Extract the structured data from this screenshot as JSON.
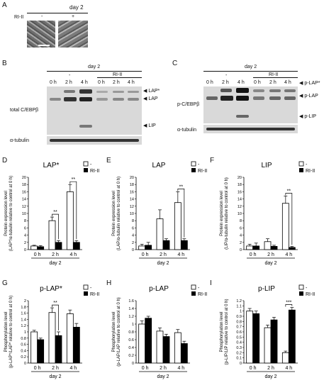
{
  "figure": {
    "panels": {
      "A": {
        "letter": "A",
        "group_label": "day 2",
        "row_label": "RI-II",
        "conditions": [
          "-",
          "+"
        ]
      },
      "B": {
        "letter": "B",
        "group_label": "day 2",
        "treatment_label": "RI-II",
        "minus_label": "-",
        "times": [
          "0 h",
          "2 h",
          "4 h",
          "0 h",
          "2 h",
          "4 h"
        ],
        "left_label": "total C/EBPβ",
        "loading_label": "α-tubulin",
        "band_labels": [
          "LAP*",
          "LAP",
          "LIP"
        ]
      },
      "C": {
        "letter": "C",
        "group_label": "day 2",
        "treatment_label": "RI-II",
        "minus_label": "-",
        "times": [
          "0 h",
          "2 h",
          "4 h",
          "0 h",
          "2 h",
          "4 h"
        ],
        "left_label": "p-C/EBPβ",
        "loading_label": "α-tubulin",
        "band_labels": [
          "p-LAP*",
          "p-LAP",
          "p-LIP"
        ]
      }
    },
    "legend": {
      "minus": "-",
      "treatment": "RI-II"
    }
  },
  "chart_data": [
    {
      "panel": "D",
      "type": "bar",
      "title": "LAP*",
      "ylabel": "Protein expression level\n(LAP*/α-tubulin relative to control at 0 h)",
      "xlabel": "day 2",
      "categories": [
        "0 h",
        "2 h",
        "4 h"
      ],
      "ylim": [
        0,
        20
      ],
      "yticks": [
        "0",
        "2",
        "4",
        "6",
        "8",
        "10",
        "12",
        "14",
        "16",
        "18",
        "20"
      ],
      "series": [
        {
          "name": "-",
          "values": [
            1,
            8,
            16
          ],
          "errors": [
            0.2,
            1.0,
            2.0
          ],
          "color": "#ffffff"
        },
        {
          "name": "RI-II",
          "values": [
            0.8,
            2,
            2
          ],
          "errors": [
            0.3,
            0.5,
            0.5
          ],
          "color": "#000000"
        }
      ],
      "significance": [
        {
          "category": "2 h",
          "label": "**"
        },
        {
          "category": "4 h",
          "label": "**"
        }
      ]
    },
    {
      "panel": "E",
      "type": "bar",
      "title": "LAP",
      "ylabel": "Protein expression level\n(LAP/α-tubulin relative to control at 0 h)",
      "xlabel": "day 2",
      "categories": [
        "0 h",
        "2 h",
        "4 h"
      ],
      "ylim": [
        0,
        20
      ],
      "yticks": [
        "0",
        "2",
        "4",
        "6",
        "8",
        "10",
        "12",
        "14",
        "16",
        "18",
        "20"
      ],
      "series": [
        {
          "name": "-",
          "values": [
            1,
            8.5,
            13
          ],
          "errors": [
            0.5,
            2.5,
            3.0
          ],
          "color": "#ffffff"
        },
        {
          "name": "RI-II",
          "values": [
            1.2,
            2.5,
            2.5
          ],
          "errors": [
            0.8,
            0.5,
            0.5
          ],
          "color": "#000000"
        }
      ],
      "significance": [
        {
          "category": "4 h",
          "label": "**"
        }
      ]
    },
    {
      "panel": "F",
      "type": "bar",
      "title": "LIP",
      "ylabel": "Protein expression level\n(LIP/α-tubulin relative to control at 0 h)",
      "xlabel": "day 2",
      "categories": [
        "0 h",
        "2 h",
        "4 h"
      ],
      "ylim": [
        0,
        20
      ],
      "yticks": [
        "0",
        "2",
        "4",
        "6",
        "8",
        "10",
        "12",
        "14",
        "16",
        "18",
        "20"
      ],
      "series": [
        {
          "name": "-",
          "values": [
            1,
            2.2,
            12.8
          ],
          "errors": [
            0.5,
            0.8,
            2.0
          ],
          "color": "#ffffff"
        },
        {
          "name": "RI-II",
          "values": [
            1,
            0.9,
            0.6
          ],
          "errors": [
            0.8,
            0.3,
            0.3
          ],
          "color": "#000000"
        }
      ],
      "significance": [
        {
          "category": "4 h",
          "label": "**"
        }
      ]
    },
    {
      "panel": "G",
      "type": "bar",
      "title": "p-LAP*",
      "ylabel": "Phosphorylation level\n(p-LAP*/LAP* relative to control at 0 h)",
      "xlabel": "day 2",
      "categories": [
        "0 h",
        "2 h",
        "4 h"
      ],
      "ylim": [
        0,
        2
      ],
      "yticks": [
        "0",
        "0.2",
        "0.4",
        "0.6",
        "0.8",
        "1",
        "1.2",
        "1.4",
        "1.6",
        "1.8",
        "2"
      ],
      "series": [
        {
          "name": "-",
          "values": [
            1,
            1.62,
            1.58
          ],
          "errors": [
            0.05,
            0.15,
            0.12
          ],
          "color": "#ffffff"
        },
        {
          "name": "RI-II",
          "values": [
            0.75,
            0.88,
            1.15
          ],
          "errors": [
            0.05,
            0.12,
            0.12
          ],
          "color": "#000000"
        }
      ],
      "significance": [
        {
          "category": "2 h",
          "label": "**"
        }
      ]
    },
    {
      "panel": "H",
      "type": "bar",
      "title": "p-LAP",
      "ylabel": "Phosphorylation level\n(p-LAP/LAP relative to control at 0 h)",
      "xlabel": "day 2",
      "categories": [
        "0 h",
        "2 h",
        "4 h"
      ],
      "ylim": [
        0,
        1.6
      ],
      "yticks": [
        "0",
        "0.2",
        "0.4",
        "0.6",
        "0.8",
        "1",
        "1.2",
        "1.4",
        "1.6"
      ],
      "series": [
        {
          "name": "-",
          "values": [
            1,
            0.82,
            0.78
          ],
          "errors": [
            0.08,
            0.08,
            0.08
          ],
          "color": "#ffffff"
        },
        {
          "name": "RI-II",
          "values": [
            1.15,
            0.68,
            0.5
          ],
          "errors": [
            0.05,
            0.06,
            0.06
          ],
          "color": "#000000"
        }
      ],
      "significance": []
    },
    {
      "panel": "I",
      "type": "bar",
      "title": "p-LIP",
      "ylabel": "Phosphorylation level\n(p-LIP/LIP relative to control at 0 h)",
      "xlabel": "day 2",
      "categories": [
        "0 h",
        "2 h",
        "4 h"
      ],
      "ylim": [
        0,
        1.2
      ],
      "yticks": [
        "0",
        "0.1",
        "0.2",
        "0.3",
        "0.4",
        "0.5",
        "0.6",
        "0.7",
        "0.8",
        "0.9",
        "1",
        "1.1",
        "1.2"
      ],
      "series": [
        {
          "name": "-",
          "values": [
            1,
            0.68,
            0.2
          ],
          "errors": [
            0.05,
            0.05,
            0.03
          ],
          "color": "#ffffff"
        },
        {
          "name": "RI-II",
          "values": [
            0.95,
            0.83,
            1.02
          ],
          "errors": [
            0.05,
            0.05,
            0.05
          ],
          "color": "#000000"
        }
      ],
      "significance": [
        {
          "category": "4 h",
          "label": "***"
        }
      ]
    }
  ]
}
